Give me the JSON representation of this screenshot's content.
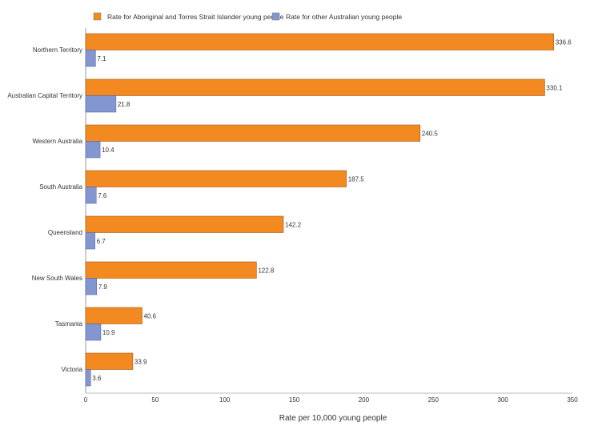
{
  "chart_data": {
    "type": "bar",
    "orientation": "horizontal",
    "title": "",
    "xlabel": "Rate per 10,000 young people",
    "ylabel": "",
    "xlim": [
      0,
      350
    ],
    "xticks": [
      0,
      50,
      100,
      150,
      200,
      250,
      300,
      350
    ],
    "grid": false,
    "legend": "top",
    "categories": [
      "Northern Territory",
      "Australian Capital Territory",
      "Western Australia",
      "South Australia",
      "Queensland",
      "New South Wales",
      "Tasmania",
      "Victoria"
    ],
    "series": [
      {
        "name": "Rate for Aboriginal and Torres Strait Islander young people",
        "color": "#f28a21",
        "values": [
          336.6,
          330.1,
          240.5,
          187.5,
          142.2,
          122.8,
          40.6,
          33.9
        ]
      },
      {
        "name": "Rate for other Australian young people",
        "color": "#8496d0",
        "values": [
          7.1,
          21.8,
          10.4,
          7.6,
          6.7,
          7.9,
          10.9,
          3.6
        ]
      }
    ]
  }
}
